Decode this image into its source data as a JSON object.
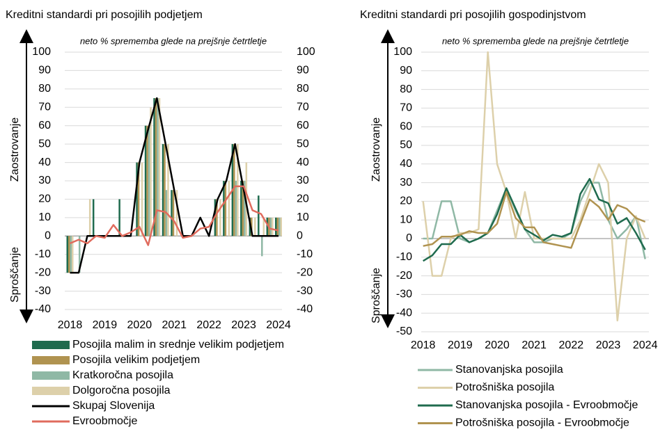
{
  "chart_data": [
    {
      "type": "bar",
      "title": "Kreditni standardi pri posojilih podjetjem",
      "subtitle": "neto % sprememba glede na prejšnje četrtletje",
      "annotations": [
        "Zaostrovanje",
        "Sproščanje"
      ],
      "x": [
        2018,
        2018.25,
        2018.5,
        2018.75,
        2019,
        2019.25,
        2019.5,
        2019.75,
        2020,
        2020.25,
        2020.5,
        2020.75,
        2021,
        2021.25,
        2021.5,
        2021.75,
        2022,
        2022.25,
        2022.5,
        2022.75,
        2023,
        2023.25,
        2023.5,
        2023.75,
        2024
      ],
      "xlim": [
        2017.85,
        2024.1
      ],
      "xticks": [
        2018,
        2019,
        2020,
        2021,
        2022,
        2023,
        2024
      ],
      "ylim": [
        -40,
        100
      ],
      "yticks": [
        -40,
        -30,
        -20,
        -10,
        0,
        10,
        20,
        30,
        40,
        50,
        60,
        70,
        80,
        90,
        100
      ],
      "y2lim": [
        -40,
        100
      ],
      "y2ticks": [
        -40,
        -30,
        -20,
        -10,
        0,
        10,
        20,
        30,
        40,
        50,
        60,
        70,
        80,
        90,
        100
      ],
      "grid": true,
      "series": [
        {
          "name": "Posojila malim in srednje velikim podjetjem",
          "type": "bar",
          "color": "#1f6b4e",
          "values": [
            -20,
            0,
            0,
            20,
            0,
            0,
            20,
            0,
            40,
            60,
            75,
            50,
            25,
            0,
            0,
            0,
            0,
            20,
            30,
            50,
            30,
            10,
            22,
            10,
            10
          ]
        },
        {
          "name": "Posojila velikim podjetjem",
          "type": "bar",
          "color": "#b09350",
          "values": [
            -20,
            0,
            0,
            0,
            0,
            0,
            0,
            0,
            40,
            60,
            75,
            50,
            25,
            0,
            0,
            0,
            0,
            20,
            30,
            50,
            30,
            10,
            0,
            10,
            10
          ]
        },
        {
          "name": "Kratkoročna posojila",
          "type": "bar",
          "color": "#8fb8a5",
          "values": [
            -20,
            -20,
            0,
            0,
            0,
            0,
            0,
            0,
            0,
            60,
            75,
            25,
            0,
            0,
            0,
            0,
            0,
            0,
            0,
            30,
            30,
            0,
            -11,
            10,
            10
          ]
        },
        {
          "name": "Dolgoročna posojila",
          "type": "bar",
          "color": "#ddd0aa",
          "values": [
            -20,
            0,
            20,
            0,
            0,
            0,
            0,
            0,
            40,
            70,
            75,
            50,
            25,
            0,
            0,
            0,
            0,
            20,
            30,
            50,
            40,
            10,
            10,
            10,
            10
          ]
        },
        {
          "name": "Skupaj Slovenija",
          "type": "line",
          "color": "#000000",
          "values": [
            -20,
            -20,
            0,
            0,
            0,
            0,
            0,
            0,
            40,
            58,
            75,
            50,
            25,
            0,
            0,
            10,
            0,
            20,
            30,
            50,
            25,
            0,
            0,
            0,
            0
          ]
        },
        {
          "name": "Evroobmočje",
          "type": "line",
          "color": "#e06b5d",
          "values": [
            -4,
            -2,
            -4,
            0,
            -1,
            6,
            0,
            2,
            5,
            -5,
            14,
            13,
            8,
            -1,
            0,
            4,
            5,
            13,
            20,
            27,
            27,
            14,
            12,
            4,
            3
          ]
        }
      ]
    },
    {
      "type": "line",
      "title": "Kreditni standardi pri posojilih gospodinjstvom",
      "subtitle": "neto % sprememba glede na prejšnje četrtletje",
      "annotations": [
        "Zaostrovanje",
        "Sproščanje"
      ],
      "x": [
        2018,
        2018.25,
        2018.5,
        2018.75,
        2019,
        2019.25,
        2019.5,
        2019.75,
        2020,
        2020.25,
        2020.5,
        2020.75,
        2021,
        2021.25,
        2021.5,
        2021.75,
        2022,
        2022.25,
        2022.5,
        2022.75,
        2023,
        2023.25,
        2023.5,
        2023.75,
        2024
      ],
      "xlim": [
        2017.95,
        2024.1
      ],
      "xticks": [
        2018,
        2019,
        2020,
        2021,
        2022,
        2023,
        2024
      ],
      "ylim": [
        -50,
        100
      ],
      "yticks": [
        -50,
        -40,
        -30,
        -20,
        -10,
        0,
        10,
        20,
        30,
        40,
        50,
        60,
        70,
        80,
        90,
        100
      ],
      "grid": true,
      "series": [
        {
          "name": "Stanovanjska posojila",
          "color": "#8fb8a5",
          "values": [
            0,
            0,
            20,
            20,
            0,
            -2,
            0,
            3,
            15,
            27,
            15,
            5,
            -2,
            -2,
            0,
            0,
            3,
            20,
            30,
            30,
            10,
            0,
            5,
            12,
            -11
          ]
        },
        {
          "name": "Potrošniška posojila",
          "color": "#ddd0aa",
          "values": [
            20,
            -20,
            -20,
            0,
            3,
            3,
            5,
            100,
            40,
            25,
            0,
            25,
            0,
            0,
            0,
            0,
            0,
            10,
            25,
            40,
            30,
            -44,
            0,
            12,
            0
          ]
        },
        {
          "name": "Stanovanjska posojila - Evroobmočje",
          "color": "#1f6b4e",
          "values": [
            -12,
            -9,
            -3,
            -3,
            2,
            -2,
            0,
            3,
            13,
            27,
            16,
            5,
            2,
            -1,
            2,
            1,
            3,
            24,
            32,
            21,
            19,
            8,
            11,
            3,
            -6
          ]
        },
        {
          "name": "Potrošniška posojila - Evroobmočje",
          "color": "#b09350",
          "values": [
            -4,
            -3,
            1,
            1,
            2,
            4,
            3,
            3,
            8,
            25,
            11,
            6,
            6,
            -2,
            -3,
            -4,
            -5,
            8,
            21,
            17,
            10,
            18,
            16,
            11,
            9
          ]
        }
      ]
    }
  ]
}
